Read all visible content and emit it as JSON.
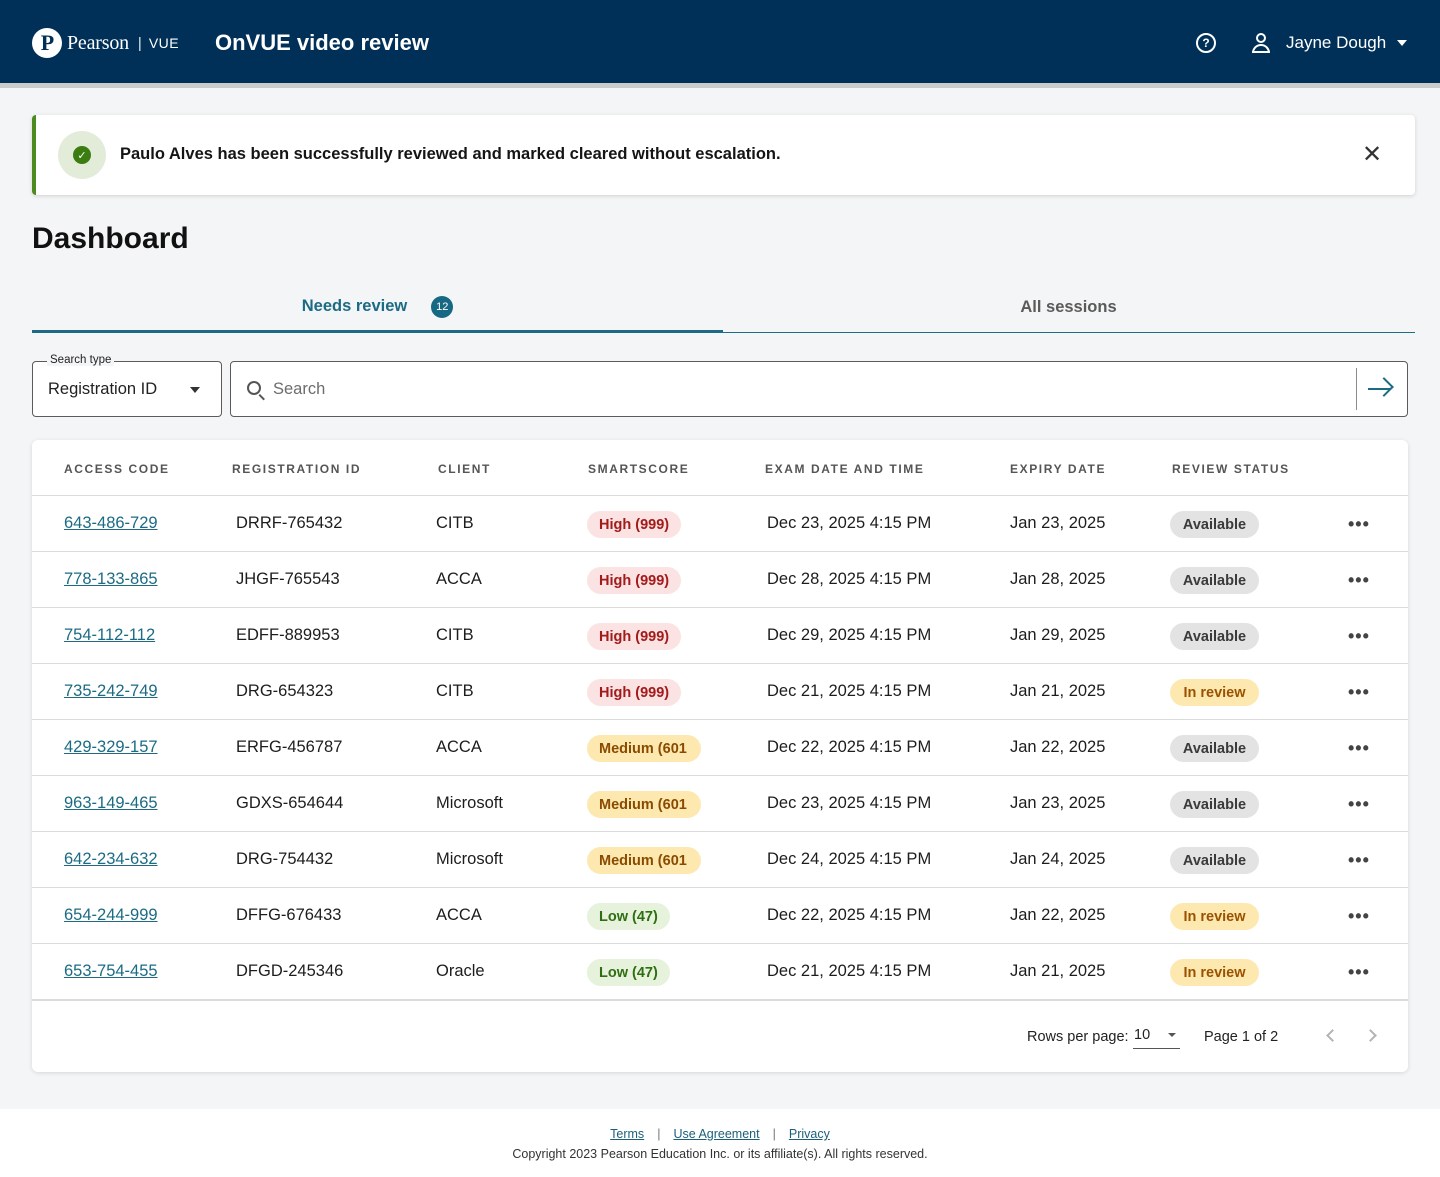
{
  "header": {
    "brand_name": "Pearson",
    "brand_sep": "|",
    "brand_product": "VUE",
    "app_title": "OnVUE video review",
    "help_icon": "question-circle-icon",
    "user_name": "Jayne Dough"
  },
  "alert": {
    "message": "Paulo Alves has been successfully reviewed and marked cleared without escalation.",
    "icon": "check-circle-icon",
    "close_icon": "close-icon",
    "status_color": "#4d8a1f"
  },
  "page": {
    "title": "Dashboard"
  },
  "tabs": [
    {
      "label": "Needs review",
      "badge": "12",
      "active": true
    },
    {
      "label": "All sessions",
      "active": false
    }
  ],
  "search": {
    "type_label": "Search type",
    "type_value": "Registration ID",
    "placeholder": "Search",
    "value": ""
  },
  "table": {
    "columns": [
      "ACCESS CODE",
      "REGISTRATION ID",
      "CLIENT",
      "SMARTSCORE",
      "EXAM DATE AND TIME",
      "EXPIRY DATE",
      "REVIEW STATUS"
    ],
    "rows": [
      {
        "access_code": "643-486-729",
        "registration_id": "DRRF-765432",
        "client": "CITB",
        "smartscore": "High (999)",
        "smartscore_level": "high",
        "exam_datetime": "Dec 23, 2025 4:15 PM",
        "expiry": "Jan 23, 2025",
        "status": "Available",
        "status_level": "available"
      },
      {
        "access_code": "778-133-865",
        "registration_id": "JHGF-765543",
        "client": "ACCA",
        "smartscore": "High (999)",
        "smartscore_level": "high",
        "exam_datetime": "Dec 28, 2025 4:15 PM",
        "expiry": "Jan 28, 2025",
        "status": "Available",
        "status_level": "available"
      },
      {
        "access_code": "754-112-112",
        "registration_id": "EDFF-889953",
        "client": "CITB",
        "smartscore": "High (999)",
        "smartscore_level": "high",
        "exam_datetime": "Dec 29, 2025 4:15 PM",
        "expiry": "Jan 29, 2025",
        "status": "Available",
        "status_level": "available"
      },
      {
        "access_code": "735-242-749",
        "registration_id": "DRG-654323",
        "client": "CITB",
        "smartscore": "High (999)",
        "smartscore_level": "high",
        "exam_datetime": "Dec 21, 2025 4:15 PM",
        "expiry": "Jan 21, 2025",
        "status": "In review",
        "status_level": "inreview"
      },
      {
        "access_code": "429-329-157",
        "registration_id": "ERFG-456787",
        "client": "ACCA",
        "smartscore": "Medium (601",
        "smartscore_level": "medium",
        "exam_datetime": "Dec 22, 2025 4:15 PM",
        "expiry": "Jan 22, 2025",
        "status": "Available",
        "status_level": "available"
      },
      {
        "access_code": "963-149-465",
        "registration_id": "GDXS-654644",
        "client": "Microsoft",
        "smartscore": "Medium (601",
        "smartscore_level": "medium",
        "exam_datetime": "Dec 23, 2025 4:15 PM",
        "expiry": "Jan 23, 2025",
        "status": "Available",
        "status_level": "available"
      },
      {
        "access_code": "642-234-632",
        "registration_id": "DRG-754432",
        "client": "Microsoft",
        "smartscore": "Medium (601",
        "smartscore_level": "medium",
        "exam_datetime": "Dec 24, 2025 4:15 PM",
        "expiry": "Jan 24, 2025",
        "status": "Available",
        "status_level": "available"
      },
      {
        "access_code": "654-244-999",
        "registration_id": "DFFG-676433",
        "client": "ACCA",
        "smartscore": "Low (47)",
        "smartscore_level": "low",
        "exam_datetime": "Dec 22, 2025 4:15 PM",
        "expiry": "Jan 22, 2025",
        "status": "In review",
        "status_level": "inreview"
      },
      {
        "access_code": "653-754-455",
        "registration_id": "DFGD-245346",
        "client": "Oracle",
        "smartscore": "Low (47)",
        "smartscore_level": "low",
        "exam_datetime": "Dec 21, 2025 4:15 PM",
        "expiry": "Jan 21, 2025",
        "status": "In review",
        "status_level": "inreview"
      }
    ],
    "row_menu_icon": "more-horizontal-icon"
  },
  "pagination": {
    "rows_per_page_label": "Rows per page:",
    "rows_per_page_value": "10",
    "page_info": "Page 1 of 2"
  },
  "footer": {
    "links": [
      "Terms",
      "Use Agreement",
      "Privacy"
    ],
    "copyright": "Copyright 2023 Pearson Education Inc. or its affiliate(s). All rights reserved."
  },
  "colors": {
    "header_bg": "#003057",
    "accent": "#1b6b84",
    "high": "#a31a1a",
    "medium": "#8a4a00",
    "low": "#2f6e12"
  }
}
